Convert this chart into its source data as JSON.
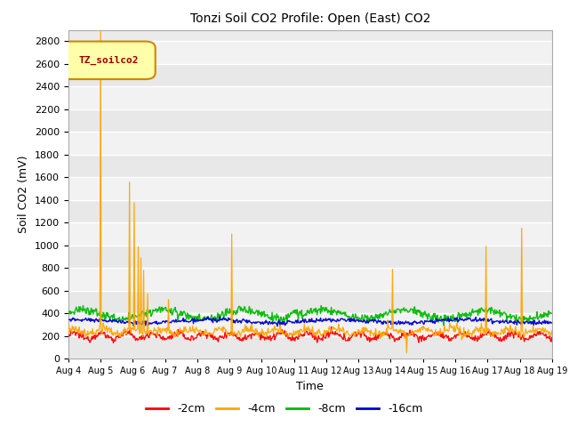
{
  "title": "Tonzi Soil CO2 Profile: Open (East) CO2",
  "xlabel": "Time",
  "ylabel": "Soil CO2 (mV)",
  "ylim": [
    0,
    2900
  ],
  "yticks": [
    0,
    200,
    400,
    600,
    800,
    1000,
    1200,
    1400,
    1600,
    1800,
    2000,
    2200,
    2400,
    2600,
    2800
  ],
  "series_labels": [
    "-2cm",
    "-4cm",
    "-8cm",
    "-16cm"
  ],
  "series_colors": [
    "#ff0000",
    "#ffa500",
    "#00bb00",
    "#0000cc"
  ],
  "legend_label": "TZ_soilco2",
  "legend_label_color": "#990000",
  "legend_box_facecolor": "#ffffaa",
  "legend_box_edgecolor": "#cc8800",
  "n_points": 720,
  "xtick_labels": [
    "Aug 4",
    "Aug 5",
    "Aug 6",
    "Aug 7",
    "Aug 8",
    "Aug 9",
    "Aug 10",
    "Aug 11",
    "Aug 12",
    "Aug 13",
    "Aug 14",
    "Aug 15",
    "Aug 16",
    "Aug 17",
    "Aug 18",
    "Aug 19"
  ],
  "plot_bg_color": "#ebebeb",
  "grid_color": "#ffffff",
  "band_color1": "#e8e8e8",
  "band_color2": "#f2f2f2"
}
